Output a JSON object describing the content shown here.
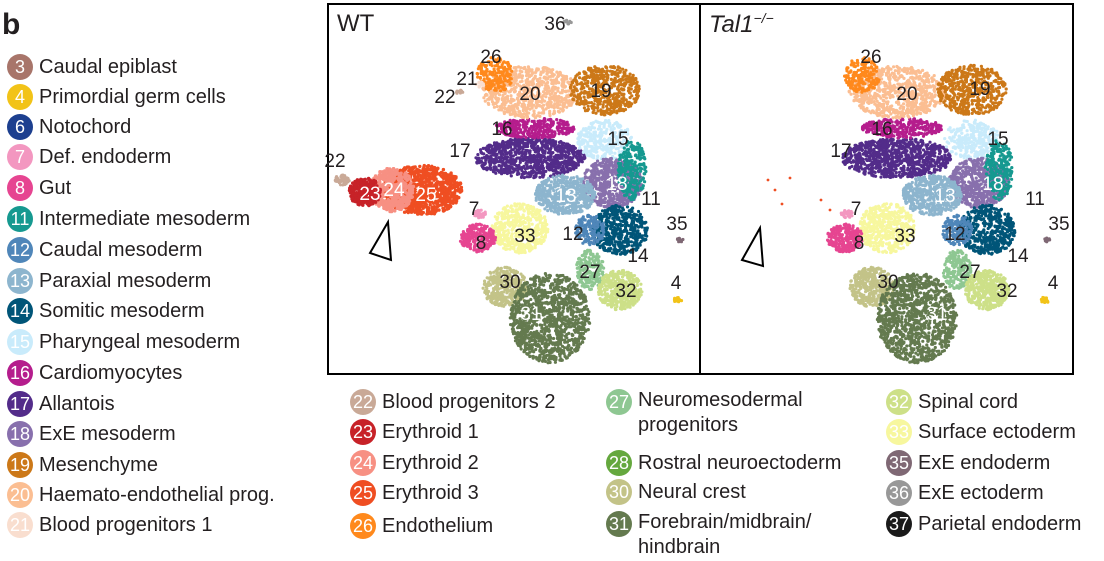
{
  "figure": {
    "panel_letter": "b",
    "panels": [
      {
        "title": "WT",
        "superscript": ""
      },
      {
        "title": "Tal1",
        "superscript": "−/−"
      }
    ]
  },
  "legend": [
    {
      "num": "3",
      "label": "Caudal epiblast",
      "color": "#a8756a"
    },
    {
      "num": "4",
      "label": "Primordial germ cells",
      "color": "#f2c318"
    },
    {
      "num": "6",
      "label": "Notochord",
      "color": "#1d3f8f"
    },
    {
      "num": "7",
      "label": "Def. endoderm",
      "color": "#f397c0"
    },
    {
      "num": "8",
      "label": "Gut",
      "color": "#e64591"
    },
    {
      "num": "11",
      "label": "Intermediate mesoderm",
      "color": "#169990"
    },
    {
      "num": "12",
      "label": "Caudal mesoderm",
      "color": "#4f86b9"
    },
    {
      "num": "13",
      "label": "Paraxial mesoderm",
      "color": "#8db5ce"
    },
    {
      "num": "14",
      "label": "Somitic mesoderm",
      "color": "#005578"
    },
    {
      "num": "15",
      "label": "Pharyngeal mesoderm",
      "color": "#c9ebfb"
    },
    {
      "num": "16",
      "label": "Cardiomyocytes",
      "color": "#b51d8d"
    },
    {
      "num": "17",
      "label": "Allantois",
      "color": "#532c8a"
    },
    {
      "num": "18",
      "label": "ExE mesoderm",
      "color": "#8870ad"
    },
    {
      "num": "19",
      "label": "Mesenchyme",
      "color": "#cc7818"
    },
    {
      "num": "20",
      "label": "Haemato-endothelial prog.",
      "color": "#fbbe92"
    },
    {
      "num": "21",
      "label": "Blood progenitors 1",
      "color": "#f9decf"
    },
    {
      "num": "22",
      "label": "Blood progenitors 2",
      "color": "#c9a997"
    },
    {
      "num": "23",
      "label": "Erythroid 1",
      "color": "#c72228"
    },
    {
      "num": "24",
      "label": "Erythroid 2",
      "color": "#f79083"
    },
    {
      "num": "25",
      "label": "Erythroid 3",
      "color": "#ef4e22"
    },
    {
      "num": "26",
      "label": "Endothelium",
      "color": "#ff891c"
    },
    {
      "num": "27",
      "label": "Neuromesodermal progenitors",
      "color": "#8ec792"
    },
    {
      "num": "28",
      "label": "Rostral neuroectoderm",
      "color": "#65a83e"
    },
    {
      "num": "30",
      "label": "Neural crest",
      "color": "#c3c388"
    },
    {
      "num": "31",
      "label": "Forebrain/midbrain/ hindbrain",
      "color": "#647a4f"
    },
    {
      "num": "32",
      "label": "Spinal cord",
      "color": "#cde088"
    },
    {
      "num": "33",
      "label": "Surface ectoderm",
      "color": "#f7f79e"
    },
    {
      "num": "35",
      "label": "ExE endoderm",
      "color": "#7f6874"
    },
    {
      "num": "36",
      "label": "ExE ectoderm",
      "color": "#989898"
    },
    {
      "num": "37",
      "label": "Parietal endoderm",
      "color": "#1a1a1a"
    }
  ],
  "wt_labels": [
    "36",
    "26",
    "21",
    "22",
    "20",
    "19",
    "16",
    "15",
    "17",
    "22",
    "23",
    "24",
    "25",
    "18",
    "13",
    "11",
    "7",
    "33",
    "12",
    "35",
    "8",
    "14",
    "27",
    "30",
    "4",
    "32",
    "31"
  ],
  "tal_labels": [
    "26",
    "20",
    "19",
    "16",
    "15",
    "17",
    "18",
    "13",
    "11",
    "7",
    "33",
    "12",
    "35",
    "8",
    "14",
    "27",
    "30",
    "4",
    "32",
    "31"
  ]
}
